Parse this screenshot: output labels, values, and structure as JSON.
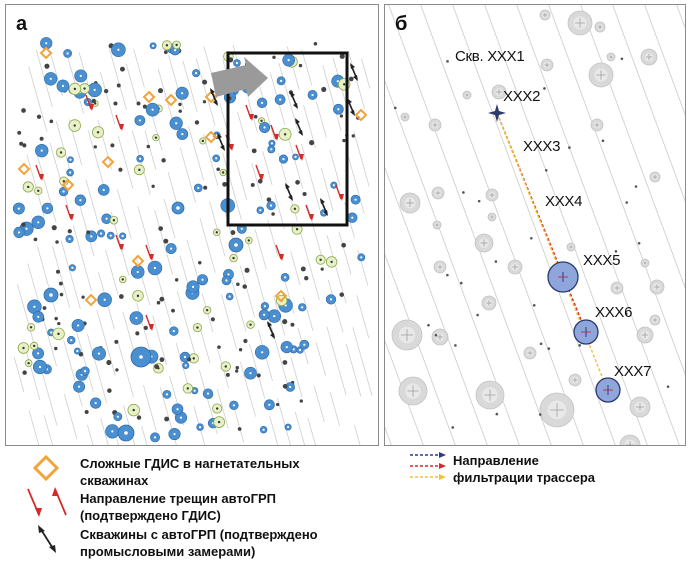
{
  "panels": {
    "a": {
      "letter": "а"
    },
    "b": {
      "letter": "б"
    }
  },
  "well_labels": {
    "w1": "Скв. ХХХ1",
    "w2": "ХХХ2",
    "w3": "ХХХ3",
    "w4": "ХХХ4",
    "w5": "ХХХ5",
    "w6": "ХХХ6",
    "w7": "ХХХ7"
  },
  "legend": {
    "complex_gdis": "Сложные ГДИС в нагнетательных скважинах",
    "fracture_direction": "Направление трещин автоГРП (подтверждено ГДИС)",
    "wells_autogrp": "Скважины с автоГРП (подтверждено промысловыми замерами)",
    "tracer_direction_line1": "Направление",
    "tracer_direction_line2": "фильтрации трассера"
  },
  "colors": {
    "blue_well": "#4a8fd0",
    "orange_diamond": "#f2a43a",
    "red_arrow": "#d62a2a",
    "dark_arrow": "#222222",
    "tracer_navy": "#2b3a8c",
    "tracer_red": "#d62a2a",
    "tracer_yellow": "#f2c12e"
  }
}
